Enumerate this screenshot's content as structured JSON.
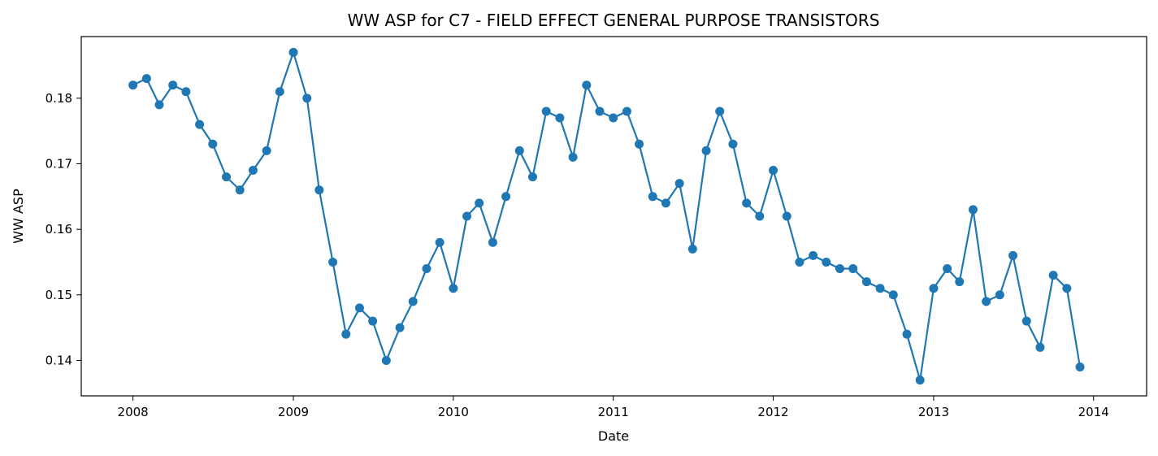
{
  "chart_data": {
    "type": "line",
    "title": "WW ASP for C7 - FIELD EFFECT GENERAL PURPOSE TRANSISTORS",
    "xlabel": "Date",
    "ylabel": "WW ASP",
    "xlim": [
      "2007-09-05",
      "2014-05-02"
    ],
    "ylim": [
      0.1346,
      0.1894
    ],
    "x_ticks": [
      "2008",
      "2009",
      "2010",
      "2011",
      "2012",
      "2013",
      "2014"
    ],
    "y_ticks": [
      "0.14",
      "0.15",
      "0.16",
      "0.17",
      "0.18"
    ],
    "y_tick_values": [
      0.14,
      0.15,
      0.16,
      0.17,
      0.18
    ],
    "color": "#1f77b4",
    "markers": "circle",
    "grid": false,
    "legend": "none",
    "series": [
      {
        "dates": [
          "2008-01",
          "2008-02",
          "2008-03",
          "2008-04",
          "2008-05",
          "2008-06",
          "2008-07",
          "2008-08",
          "2008-09",
          "2008-10",
          "2008-11",
          "2008-12",
          "2009-01",
          "2009-02",
          "2009-03",
          "2009-04",
          "2009-05",
          "2009-06",
          "2009-07",
          "2009-08",
          "2009-09",
          "2009-10",
          "2009-11",
          "2009-12",
          "2010-01",
          "2010-02",
          "2010-03",
          "2010-04",
          "2010-05",
          "2010-06",
          "2010-07",
          "2010-08",
          "2010-09",
          "2010-10",
          "2010-11",
          "2010-12",
          "2011-01",
          "2011-02",
          "2011-03",
          "2011-04",
          "2011-05",
          "2011-06",
          "2011-07",
          "2011-08",
          "2011-09",
          "2011-10",
          "2011-11",
          "2011-12",
          "2012-01",
          "2012-02",
          "2012-03",
          "2012-04",
          "2012-05",
          "2012-06",
          "2012-07",
          "2012-08",
          "2012-09",
          "2012-10",
          "2012-11",
          "2012-12",
          "2013-01",
          "2013-02",
          "2013-03",
          "2013-04",
          "2013-05",
          "2013-06",
          "2013-07",
          "2013-08",
          "2013-09",
          "2013-10",
          "2013-11",
          "2013-12"
        ],
        "values": [
          0.182,
          0.183,
          0.179,
          0.182,
          0.181,
          0.176,
          0.173,
          0.168,
          0.166,
          0.169,
          0.172,
          0.181,
          0.187,
          0.18,
          0.166,
          0.155,
          0.144,
          0.148,
          0.146,
          0.14,
          0.145,
          0.149,
          0.154,
          0.158,
          0.151,
          0.162,
          0.164,
          0.158,
          0.165,
          0.172,
          0.168,
          0.178,
          0.177,
          0.171,
          0.182,
          0.178,
          0.177,
          0.178,
          0.173,
          0.165,
          0.164,
          0.167,
          0.157,
          0.172,
          0.178,
          0.173,
          0.164,
          0.162,
          0.169,
          0.162,
          0.155,
          0.156,
          0.155,
          0.154,
          0.154,
          0.152,
          0.151,
          0.15,
          0.144,
          0.137,
          0.151,
          0.154,
          0.152,
          0.163,
          0.149,
          0.15,
          0.156,
          0.146,
          0.142,
          0.153,
          0.151,
          0.139
        ]
      }
    ]
  }
}
